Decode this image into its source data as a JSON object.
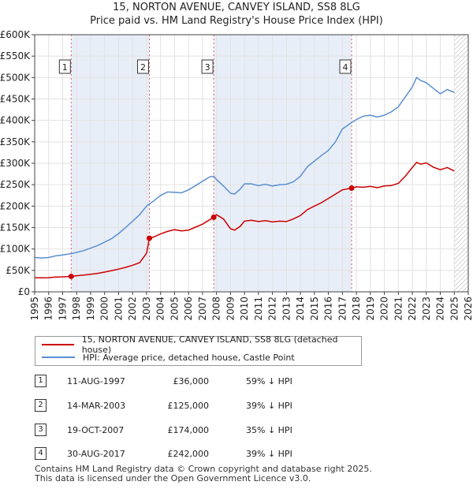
{
  "chart_data": {
    "type": "line",
    "title": "15, NORTON AVENUE, CANVEY ISLAND, SS8 8LG",
    "subtitle": "Price paid vs. HM Land Registry's House Price Index (HPI)",
    "xlim": [
      1995,
      2026
    ],
    "ylim": [
      0,
      600000
    ],
    "x_ticks": [
      "1995",
      "1996",
      "1997",
      "1998",
      "1999",
      "2000",
      "2001",
      "2002",
      "2003",
      "2004",
      "2005",
      "2006",
      "2007",
      "2008",
      "2009",
      "2010",
      "2011",
      "2012",
      "2013",
      "2014",
      "2015",
      "2016",
      "2017",
      "2018",
      "2019",
      "2020",
      "2021",
      "2022",
      "2023",
      "2024",
      "2025",
      "2026"
    ],
    "y_ticks": [
      {
        "value": 0,
        "label": "£0"
      },
      {
        "value": 50000,
        "label": "£50K"
      },
      {
        "value": 100000,
        "label": "£100K"
      },
      {
        "value": 150000,
        "label": "£150K"
      },
      {
        "value": 200000,
        "label": "£200K"
      },
      {
        "value": 250000,
        "label": "£250K"
      },
      {
        "value": 300000,
        "label": "£300K"
      },
      {
        "value": 350000,
        "label": "£350K"
      },
      {
        "value": 400000,
        "label": "£400K"
      },
      {
        "value": 450000,
        "label": "£450K"
      },
      {
        "value": 500000,
        "label": "£500K"
      },
      {
        "value": 550000,
        "label": "£550K"
      },
      {
        "value": 600000,
        "label": "£600K"
      }
    ],
    "future_from": 2025.0,
    "series": [
      {
        "name": "15, NORTON AVENUE, CANVEY ISLAND, SS8 8LG (detached house)",
        "color": "#cc0000",
        "x": [
          1995.0,
          1995.5,
          1996.0,
          1996.5,
          1997.0,
          1997.6,
          1998.0,
          1998.5,
          1999.0,
          1999.5,
          2000.0,
          2000.5,
          2001.0,
          2001.5,
          2002.0,
          2002.5,
          2003.0,
          2003.2,
          2003.5,
          2004.0,
          2004.5,
          2005.0,
          2005.5,
          2006.0,
          2006.5,
          2007.0,
          2007.5,
          2007.8,
          2008.0,
          2008.5,
          2009.0,
          2009.3,
          2009.7,
          2010.0,
          2010.5,
          2011.0,
          2011.5,
          2012.0,
          2012.5,
          2013.0,
          2013.5,
          2014.0,
          2014.5,
          2015.0,
          2015.5,
          2016.0,
          2016.5,
          2017.0,
          2017.66,
          2018.0,
          2018.5,
          2019.0,
          2019.5,
          2020.0,
          2020.5,
          2021.0,
          2021.5,
          2022.0,
          2022.3,
          2022.6,
          2023.0,
          2023.5,
          2024.0,
          2024.5,
          2025.0
        ],
        "values": [
          33000,
          32500,
          33000,
          34500,
          35000,
          36000,
          37500,
          39000,
          41000,
          43000,
          46000,
          49500,
          53000,
          57000,
          62000,
          68000,
          90000,
          125000,
          128000,
          135000,
          141000,
          145000,
          142000,
          144000,
          151000,
          158000,
          168000,
          174000,
          180000,
          170000,
          147000,
          144000,
          153000,
          165000,
          167000,
          164000,
          166000,
          163000,
          165000,
          164000,
          170000,
          178000,
          192000,
          200000,
          208000,
          218000,
          228000,
          238000,
          242000,
          245000,
          244000,
          246000,
          243000,
          247000,
          248000,
          253000,
          270000,
          290000,
          302000,
          298000,
          301000,
          291000,
          285000,
          290000,
          282000
        ]
      },
      {
        "name": "HPI: Average price, detached house, Castle Point",
        "color": "#5b8fd0",
        "x": [
          1995.0,
          1995.5,
          1996.0,
          1996.5,
          1997.0,
          1997.6,
          1998.0,
          1998.5,
          1999.0,
          1999.5,
          2000.0,
          2000.5,
          2001.0,
          2001.5,
          2002.0,
          2002.5,
          2003.0,
          2003.2,
          2003.5,
          2004.0,
          2004.5,
          2005.0,
          2005.5,
          2006.0,
          2006.5,
          2007.0,
          2007.5,
          2007.8,
          2008.0,
          2008.5,
          2009.0,
          2009.3,
          2009.7,
          2010.0,
          2010.5,
          2011.0,
          2011.5,
          2012.0,
          2012.5,
          2013.0,
          2013.5,
          2014.0,
          2014.5,
          2015.0,
          2015.5,
          2016.0,
          2016.5,
          2017.0,
          2017.66,
          2018.0,
          2018.5,
          2019.0,
          2019.5,
          2020.0,
          2020.5,
          2021.0,
          2021.5,
          2022.0,
          2022.3,
          2022.6,
          2023.0,
          2023.5,
          2024.0,
          2024.5,
          2025.0
        ],
        "values": [
          80000,
          79000,
          80000,
          84000,
          86000,
          89000,
          92000,
          96000,
          102000,
          108000,
          116000,
          124000,
          136000,
          150000,
          165000,
          180000,
          200000,
          205000,
          212000,
          225000,
          233000,
          232000,
          231000,
          238000,
          248000,
          258000,
          268000,
          270000,
          262000,
          247000,
          230000,
          228000,
          240000,
          252000,
          252000,
          248000,
          251000,
          247000,
          250000,
          251000,
          257000,
          270000,
          292000,
          305000,
          318000,
          330000,
          350000,
          380000,
          395000,
          402000,
          410000,
          412000,
          408000,
          412000,
          420000,
          432000,
          455000,
          478000,
          500000,
          493000,
          488000,
          475000,
          462000,
          472000,
          465000
        ]
      }
    ],
    "sales": [
      {
        "num": "1",
        "x": 1997.61,
        "value": 36000
      },
      {
        "num": "2",
        "x": 2003.2,
        "value": 125000
      },
      {
        "num": "3",
        "x": 2007.8,
        "value": 174000
      },
      {
        "num": "4",
        "x": 2017.66,
        "value": 242000
      }
    ]
  },
  "legend": {
    "property": "15, NORTON AVENUE, CANVEY ISLAND, SS8 8LG (detached house)",
    "hpi": "HPI: Average price, detached house, Castle Point"
  },
  "transactions": [
    {
      "num": "1",
      "date": "11-AUG-1997",
      "price": "£36,000",
      "hpi": "59% ↓ HPI"
    },
    {
      "num": "2",
      "date": "14-MAR-2003",
      "price": "£125,000",
      "hpi": "39% ↓ HPI"
    },
    {
      "num": "3",
      "date": "19-OCT-2007",
      "price": "£174,000",
      "hpi": "35% ↓ HPI"
    },
    {
      "num": "4",
      "date": "30-AUG-2017",
      "price": "£242,000",
      "hpi": "39% ↓ HPI"
    }
  ],
  "footer": {
    "line1": "Contains HM Land Registry data © Crown copyright and database right 2025.",
    "line2": "This data is licensed under the Open Government Licence v3.0."
  },
  "colors": {
    "property": "#cc0000",
    "hpi": "#5b8fd0",
    "shade": "#e8eef8"
  }
}
